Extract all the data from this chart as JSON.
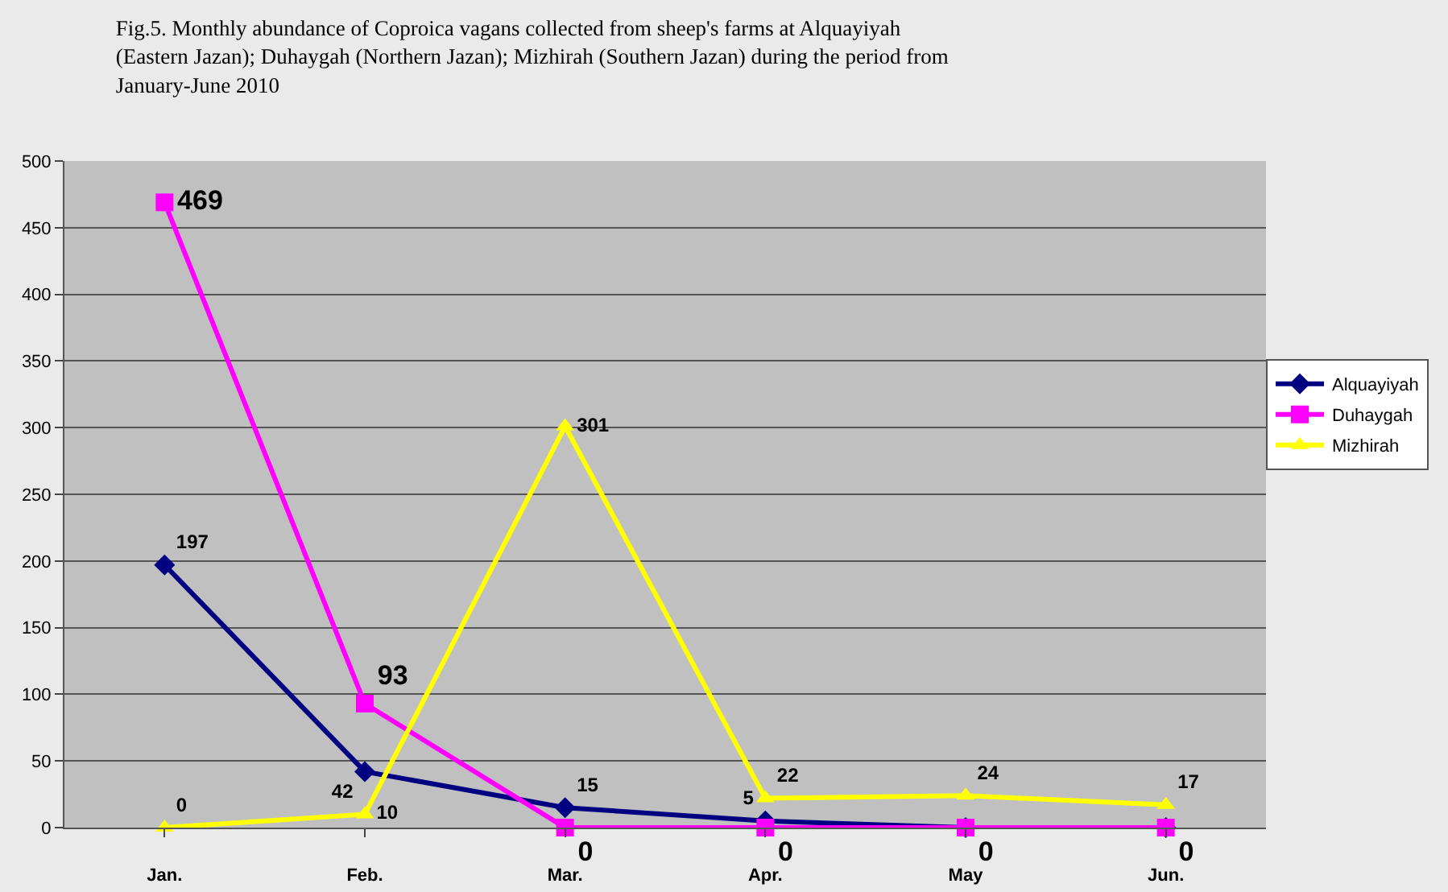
{
  "chart_data": {
    "type": "line",
    "title": "Fig.5. Monthly abundance of Coproica vagans collected from sheep's farms at Alquayiyah (Eastern Jazan); Duhaygah (Northern Jazan); Mizhirah (Southern Jazan) during the period from January-June 2010",
    "categories": [
      "Jan.",
      "Feb.",
      "Mar.",
      "Apr.",
      "May",
      "Jun."
    ],
    "series": [
      {
        "name": "Alquayiyah",
        "color": "#000080",
        "marker": "diamond",
        "values": [
          197,
          42,
          15,
          5,
          0,
          0
        ],
        "value_labels": [
          "197",
          "42",
          "15",
          "5",
          null,
          null
        ]
      },
      {
        "name": "Duhaygah",
        "color": "#ff00ff",
        "marker": "square",
        "values": [
          469,
          93,
          0,
          0,
          0,
          0
        ],
        "value_labels": [
          "469",
          "93",
          "0",
          "0",
          "0",
          "0"
        ]
      },
      {
        "name": "Mizhirah",
        "color": "#ffff00",
        "marker": "triangle",
        "values": [
          0,
          10,
          301,
          22,
          24,
          17
        ],
        "value_labels": [
          "0",
          "10",
          "301",
          "22",
          "24",
          "17"
        ]
      }
    ],
    "ylim": [
      0,
      500
    ],
    "yticks": [
      0,
      50,
      100,
      150,
      200,
      250,
      300,
      350,
      400,
      450,
      500
    ],
    "grid": "y",
    "legend": "right",
    "line_style": "solid"
  }
}
